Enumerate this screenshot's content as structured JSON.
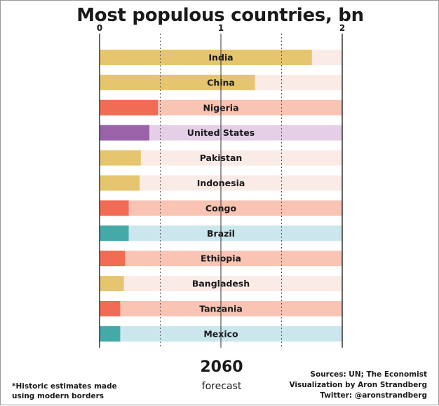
{
  "title": "Most populous countries, bn",
  "year": "2060",
  "year_note": "forecast",
  "footnote_lines": [
    "*Historic estimates made",
    "using modern borders"
  ],
  "credits": [
    "Sources: UN; The Economist",
    "Visualization by Aron Strandberg",
    "Twitter: @aronstrandberg"
  ],
  "colors": {
    "gold": "#e6c56f",
    "gold_light": "#fbebe7",
    "orange": "#f26b55",
    "orange_light": "#f9c4b4",
    "purple": "#9a62a8",
    "purple_light": "#e4cfe6",
    "teal": "#45a9a8",
    "teal_light": "#cbe6ec"
  },
  "chart_data": {
    "type": "bar",
    "orientation": "horizontal",
    "title": "Most populous countries, bn",
    "xlim": [
      0,
      2
    ],
    "xticks": [
      0,
      1,
      2
    ],
    "grid": "dashed vertical at 0.5 and 1.5",
    "categories": [
      "India",
      "China",
      "Nigeria",
      "United States",
      "Pakistan",
      "Indonesia",
      "Congo",
      "Brazil",
      "Ethiopia",
      "Bangladesh",
      "Tanzania",
      "Mexico"
    ],
    "values": [
      1.75,
      1.28,
      0.48,
      0.41,
      0.34,
      0.33,
      0.24,
      0.24,
      0.21,
      0.2,
      0.17,
      0.17
    ],
    "bar_colors": [
      "gold",
      "gold",
      "orange",
      "purple",
      "gold",
      "gold",
      "orange",
      "teal",
      "orange",
      "gold",
      "orange",
      "teal"
    ]
  }
}
